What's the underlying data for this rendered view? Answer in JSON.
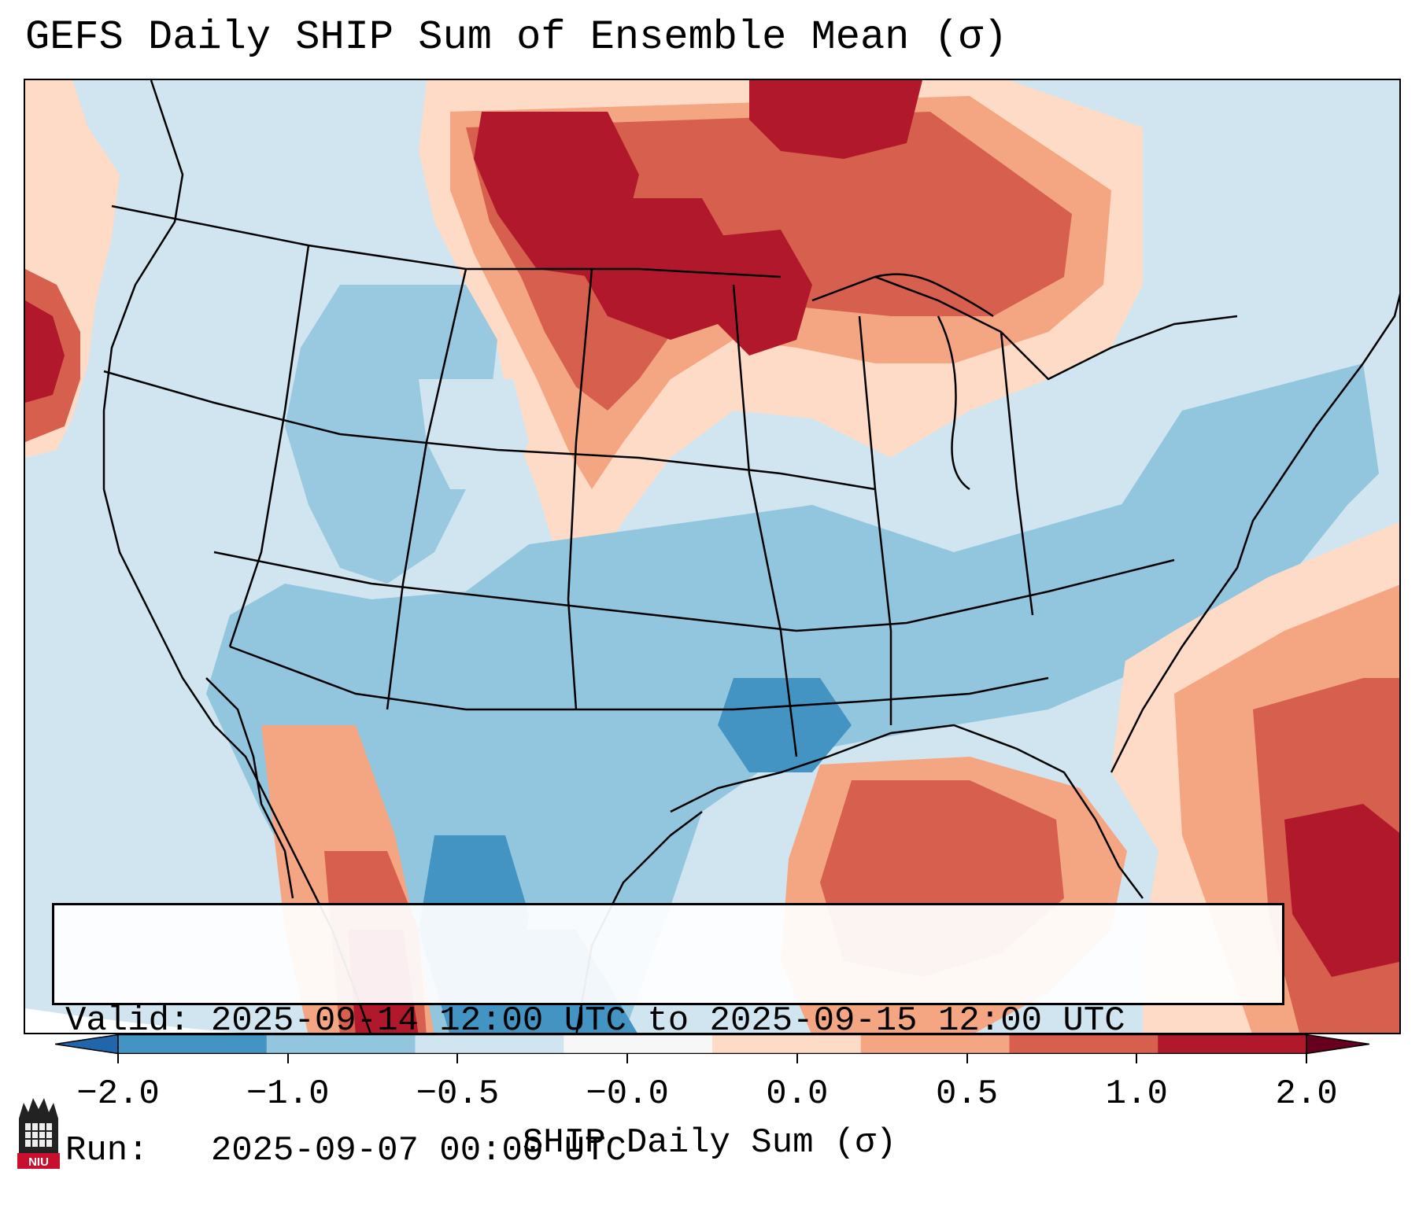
{
  "title": "GEFS Daily SHIP Sum of Ensemble Mean (σ)",
  "info": {
    "valid_label": "Valid:",
    "valid_value": "2025-09-14 12:00 UTC to 2025-09-15 12:00 UTC",
    "run_label": "Run:",
    "run_value": "2025-09-07 00:00 UTC"
  },
  "colorbar": {
    "label": "SHIP Daily Sum (σ)",
    "ticks": [
      "−2.0",
      "−1.0",
      "−0.5",
      "−0.0",
      "0.0",
      "0.5",
      "1.0",
      "2.0"
    ],
    "colors": [
      "#4393c3",
      "#92c5de",
      "#d1e5f0",
      "#f7f7f7",
      "#fddbc7",
      "#f4a582",
      "#d6604d",
      "#b2182b"
    ],
    "under_color": "#2166ac",
    "over_color": "#67001f"
  },
  "logo": {
    "text": "NIU",
    "icon": "niu-logo-icon"
  }
}
